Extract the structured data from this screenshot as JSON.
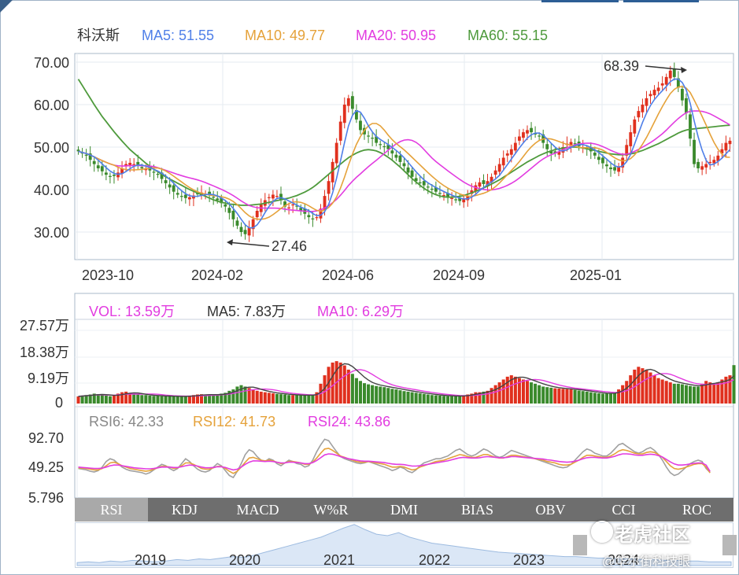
{
  "stock_name": "科沃斯",
  "ma_legend": [
    {
      "label": "MA5: 51.55",
      "color": "#4f7fe8"
    },
    {
      "label": "MA10: 49.77",
      "color": "#e5a23a"
    },
    {
      "label": "MA20: 50.95",
      "color": "#e23ce0"
    },
    {
      "label": "MA60: 55.15",
      "color": "#4e9a3c"
    }
  ],
  "vol_legend": [
    {
      "label": "VOL: 13.59万",
      "color": "#e23ce0"
    },
    {
      "label": "MA5: 7.83万",
      "color": "#333333"
    },
    {
      "label": "MA10: 6.29万",
      "color": "#e23ce0"
    }
  ],
  "rsi_legend": [
    {
      "label": "RSI6: 42.33",
      "color": "#888888"
    },
    {
      "label": "RSI12: 41.73",
      "color": "#e5a23a"
    },
    {
      "label": "RSI24: 43.86",
      "color": "#e23ce0"
    }
  ],
  "tabs": [
    "RSI",
    "KDJ",
    "MACD",
    "W%R",
    "DMI",
    "BIAS",
    "OBV",
    "CCI",
    "ROC"
  ],
  "active_tab": "RSI",
  "watermark": {
    "brand": "老虎社区",
    "author": "@华尔街科技眼"
  },
  "colors": {
    "up": "#e0301e",
    "down": "#3a8a2c",
    "ma5": "#4f7fe8",
    "ma10": "#e5a23a",
    "ma20": "#e23ce0",
    "ma60": "#4e9a3c",
    "nav_fill": "#dbe7f6",
    "nav_line": "#9dbbe0"
  },
  "chart_data": [
    {
      "type": "candlestick",
      "title": "科沃斯",
      "yticks": [
        "70.00",
        "60.00",
        "50.00",
        "40.00",
        "30.00"
      ],
      "ylim": [
        26,
        72
      ],
      "xticks": [
        "2023-10",
        "2024-02",
        "2024-06",
        "2024-09",
        "2025-01"
      ],
      "annotations": [
        {
          "label": "68.39",
          "value": 68.39
        },
        {
          "label": "27.46",
          "value": 27.46
        }
      ],
      "close": [
        49,
        48.5,
        48,
        47,
        46,
        45,
        44.3,
        43.5,
        43,
        43.2,
        44,
        45,
        46,
        46.3,
        46,
        45.6,
        45,
        44.8,
        44.5,
        44,
        43.5,
        42.5,
        41.5,
        40.5,
        39.5,
        38.8,
        38.3,
        38,
        38.2,
        38.6,
        39,
        39.3,
        39,
        38.6,
        38.2,
        37.5,
        36.8,
        36,
        34.5,
        33,
        31.5,
        30,
        29.5,
        31,
        33,
        35,
        36.5,
        37.5,
        38.2,
        38.8,
        38.5,
        37.5,
        36,
        35.8,
        36.5,
        36,
        35,
        34.3,
        33.5,
        33,
        33.5,
        35.5,
        38.5,
        42,
        46.5,
        51,
        56,
        60,
        61.5,
        59,
        56.5,
        54,
        53,
        52.5,
        52,
        51,
        50.5,
        50,
        49.5,
        48.5,
        47.5,
        46.5,
        45.5,
        44,
        43,
        42,
        41.5,
        41,
        40.5,
        40,
        39.5,
        39,
        38.7,
        38.3,
        38,
        37.6,
        37.3,
        37.8,
        38.5,
        39.8,
        41,
        41.7,
        41.3,
        42,
        43,
        44.5,
        46,
        47.5,
        48.5,
        49.5,
        51,
        52.5,
        53.5,
        54,
        53.5,
        53,
        52.5,
        51,
        49.5,
        48.5,
        48.5,
        49,
        50,
        50.8,
        51.2,
        50.8,
        50.2,
        50,
        49.5,
        49,
        48,
        47,
        46.2,
        45.5,
        44.8,
        44.5,
        45.5,
        47.5,
        50.5,
        53.5,
        56.5,
        58.5,
        60,
        61.5,
        62.5,
        63.5,
        64,
        65,
        66.5,
        68,
        66.5,
        64,
        61,
        58,
        52,
        46,
        45,
        45.5,
        46,
        46.5,
        47,
        48,
        49.5,
        51,
        51.5
      ],
      "ma60": [
        66,
        64.5,
        63,
        61.5,
        60,
        58.6,
        57.2,
        56,
        54.8,
        53.6,
        52.5,
        51.4,
        50.4,
        49.4,
        48.6,
        47.8,
        47,
        46.2,
        45.5,
        44.8,
        44.2,
        43.6,
        43,
        42.5,
        42,
        41.5,
        41,
        40.5,
        40,
        39.6,
        39.2,
        38.8,
        38.4,
        38,
        37.6,
        37.3,
        37,
        36.8,
        36.6,
        36.5,
        36.4,
        36.3,
        36.3,
        36.3,
        36.4,
        36.5,
        36.6,
        36.8,
        37,
        37.2,
        37.4,
        37.6,
        37.8,
        38,
        38.3,
        38.6,
        39,
        39.4,
        39.9,
        40.5,
        41.2,
        42,
        42.8,
        43.6,
        44.4,
        45.2,
        46,
        46.8,
        47.5,
        48.1,
        48.6,
        49,
        49.3,
        49.4,
        49.3,
        49.1,
        48.7,
        48.2,
        47.6,
        46.9,
        46.1,
        45.3,
        44.4,
        43.5,
        42.6,
        41.8,
        41,
        40.3,
        39.7,
        39.2,
        38.8,
        38.5,
        38.3,
        38.2,
        38.2,
        38.3,
        38.4,
        38.6,
        38.9,
        39.2,
        39.6,
        40,
        40.4,
        40.8,
        41.3,
        41.8,
        42.3,
        42.9,
        43.5,
        44.1,
        44.7,
        45.3,
        45.9,
        46.5,
        47,
        47.5,
        48,
        48.4,
        48.8,
        49.1,
        49.4,
        49.6,
        49.8,
        49.9,
        50,
        50,
        49.9,
        49.8,
        49.6,
        49.4,
        49.2,
        49,
        48.8,
        48.6,
        48.4,
        48.3,
        48.2,
        48.2,
        48.3,
        48.4,
        48.6,
        48.9,
        49.2,
        49.6,
        50,
        50.4,
        50.8,
        51.3,
        51.8,
        52.3,
        52.8,
        53.3,
        53.7,
        54,
        54.2,
        54.3,
        54.4,
        54.5,
        54.6,
        54.7,
        54.8,
        54.9,
        55,
        55.1,
        55.15
      ]
    },
    {
      "type": "bar",
      "title": "VOL",
      "yticks": [
        "27.57万",
        "18.38万",
        "9.19万",
        "0"
      ],
      "ylim": [
        0,
        27.57
      ],
      "values": [
        2.5,
        2.8,
        3,
        3.2,
        3.5,
        3.3,
        3,
        2.8,
        2.6,
        2.8,
        3.5,
        4,
        4.2,
        3.8,
        3.5,
        3.2,
        3,
        3,
        2.8,
        2.7,
        2.7,
        2.6,
        2.6,
        2.6,
        2.5,
        2.5,
        2.5,
        2.6,
        2.8,
        3,
        3.2,
        3.3,
        3.2,
        3.1,
        3,
        3.2,
        3.5,
        3.8,
        4.5,
        5,
        6,
        6.5,
        6,
        5.5,
        5,
        4.5,
        4.2,
        4,
        3.8,
        3.6,
        3.4,
        3.3,
        3.2,
        3,
        3,
        3,
        2.9,
        2.9,
        2.9,
        3,
        4,
        7,
        10,
        13,
        14.5,
        15,
        14.5,
        13.5,
        12,
        10.5,
        9,
        8,
        7.2,
        6.8,
        6.5,
        6.2,
        6,
        5.8,
        5.5,
        5.2,
        5,
        4.7,
        4.4,
        4.2,
        4,
        3.8,
        3.6,
        3.4,
        3.2,
        3,
        2.9,
        2.8,
        2.7,
        2.6,
        2.6,
        2.6,
        2.7,
        2.9,
        3.2,
        3.5,
        4,
        4,
        4.2,
        4.5,
        5.5,
        6.5,
        7.5,
        8.5,
        9.5,
        10,
        9.5,
        9,
        8.5,
        8,
        7.5,
        7,
        6.5,
        6,
        5.8,
        5.6,
        5.4,
        5.3,
        5.2,
        5.1,
        5,
        4.8,
        4.6,
        4.4,
        4.2,
        4,
        3.8,
        3.6,
        3.5,
        3.5,
        3.6,
        4,
        5,
        6.5,
        8,
        10,
        12,
        13,
        12.5,
        12,
        11,
        10,
        9,
        8.5,
        8,
        7.5,
        7,
        7,
        6.8,
        6.5,
        6.2,
        6,
        6,
        7,
        8,
        7.5,
        7,
        7.5,
        8.5,
        9.5,
        10,
        13.59
      ]
    },
    {
      "type": "line",
      "title": "RSI",
      "yticks": [
        "92.70",
        "49.25",
        "5.796"
      ],
      "ylim": [
        5.796,
        92.7
      ],
      "series": [
        {
          "name": "RSI6",
          "values": [
            48,
            47,
            46,
            44,
            43,
            45,
            50,
            58,
            62,
            60,
            55,
            50,
            47,
            45,
            44,
            43,
            42,
            40,
            42,
            46,
            50,
            54,
            52,
            48,
            45,
            48,
            55,
            62,
            58,
            52,
            47,
            44,
            43,
            45,
            50,
            55,
            52,
            45,
            38,
            35,
            44,
            55,
            68,
            75,
            72,
            65,
            60,
            58,
            62,
            60,
            55,
            52,
            56,
            60,
            58,
            55,
            54,
            50,
            52,
            60,
            72,
            82,
            90,
            88,
            80,
            72,
            65,
            62,
            60,
            58,
            56,
            55,
            56,
            58,
            56,
            54,
            52,
            50,
            48,
            45,
            47,
            50,
            48,
            44,
            42,
            46,
            52,
            56,
            58,
            60,
            62,
            62,
            64,
            66,
            70,
            74,
            76,
            72,
            68,
            66,
            68,
            72,
            76,
            74,
            70,
            66,
            64,
            66,
            70,
            74,
            72,
            70,
            68,
            66,
            64,
            62,
            60,
            58,
            56,
            54,
            52,
            50,
            49,
            50,
            54,
            60,
            66,
            72,
            76,
            74,
            70,
            68,
            66,
            66,
            70,
            76,
            82,
            84,
            80,
            76,
            72,
            70,
            72,
            76,
            78,
            74,
            68,
            60,
            50,
            42,
            38,
            40,
            45,
            50,
            55,
            58,
            60,
            58,
            48,
            42.33
          ]
        },
        {
          "name": "RSI12",
          "values": [
            49,
            48.5,
            48,
            47,
            46,
            46,
            48,
            52,
            56,
            57,
            55,
            52,
            50,
            48,
            47,
            46,
            45,
            44,
            45,
            47,
            49,
            51,
            51,
            50,
            48,
            49,
            52,
            56,
            56,
            54,
            51,
            48,
            47,
            47,
            49,
            51,
            51,
            48,
            44,
            41,
            44,
            50,
            57,
            63,
            64,
            62,
            60,
            59,
            60,
            59,
            57,
            55,
            56,
            58,
            58,
            57,
            56,
            54,
            54,
            57,
            63,
            70,
            76,
            77,
            74,
            70,
            66,
            64,
            62,
            60,
            58,
            57,
            57,
            58,
            57,
            56,
            55,
            54,
            52,
            50,
            50,
            51,
            50,
            48,
            46,
            47,
            50,
            52,
            54,
            56,
            58,
            59,
            60,
            62,
            64,
            66,
            68,
            67,
            65,
            64,
            64,
            66,
            68,
            68,
            66,
            64,
            63,
            63,
            65,
            67,
            67,
            66,
            65,
            64,
            63,
            62,
            61,
            60,
            58,
            57,
            56,
            54,
            53,
            53,
            54,
            57,
            60,
            64,
            67,
            67,
            66,
            65,
            64,
            64,
            66,
            69,
            73,
            75,
            74,
            72,
            70,
            69,
            69,
            71,
            72,
            71,
            68,
            64,
            58,
            52,
            48,
            47,
            48,
            50,
            52,
            54,
            55,
            55,
            50,
            41.73
          ]
        },
        {
          "name": "RSI24",
          "values": [
            50,
            49.5,
            49,
            48.5,
            48,
            48,
            48.5,
            50,
            52,
            53,
            53,
            52,
            51,
            50,
            49,
            48.5,
            48,
            47.5,
            47.5,
            48,
            49,
            50,
            50,
            50,
            49.5,
            49.5,
            50.5,
            52,
            53,
            52.5,
            51.5,
            50,
            49,
            49,
            49.5,
            50.5,
            50.5,
            49.5,
            47.5,
            46,
            47,
            50,
            54,
            57,
            59,
            59,
            58.5,
            58,
            58.5,
            58,
            57,
            56,
            56,
            57,
            57,
            56.5,
            56,
            55,
            55,
            56.5,
            59.5,
            63.5,
            67.5,
            69,
            68.5,
            67,
            65,
            63.5,
            62,
            61,
            60,
            59,
            58.5,
            58.5,
            58,
            57.5,
            57,
            56.5,
            55.5,
            54.5,
            54,
            54,
            53.5,
            52.5,
            51.5,
            51.5,
            52,
            53,
            54,
            55,
            56,
            57,
            58,
            59,
            60.5,
            62,
            63.5,
            64,
            63.5,
            63,
            63,
            63.5,
            64.5,
            65,
            64.5,
            64,
            63.5,
            63.5,
            64,
            65,
            65,
            64.5,
            64,
            63.5,
            63,
            62.5,
            62,
            61.5,
            60.5,
            60,
            59,
            58,
            57.5,
            57,
            57.5,
            58.5,
            60,
            62,
            63.5,
            64,
            64,
            63.5,
            63,
            63,
            64,
            65.5,
            67.5,
            69,
            69,
            68.5,
            67.5,
            67,
            67,
            68,
            68.5,
            68,
            66.5,
            64.5,
            61,
            57.5,
            54.5,
            53,
            53,
            53.5,
            54.5,
            55.5,
            56,
            56,
            53,
            43.86
          ]
        }
      ]
    },
    {
      "type": "area",
      "title": "navigator",
      "xticks": [
        "2019",
        "2020",
        "2021",
        "2022",
        "2023",
        "2024"
      ],
      "values": [
        4,
        5,
        4,
        6,
        5,
        7,
        6,
        5,
        6,
        8,
        7,
        9,
        8,
        10,
        12,
        11,
        14,
        18,
        22,
        26,
        30,
        34,
        38,
        44,
        50,
        55,
        48,
        42,
        40,
        44,
        38,
        34,
        30,
        28,
        26,
        24,
        22,
        20,
        18,
        17,
        16,
        15,
        14,
        13,
        12,
        12,
        11,
        10,
        10,
        9,
        9,
        8,
        8,
        7,
        7,
        6,
        6,
        5,
        5,
        5
      ]
    }
  ]
}
